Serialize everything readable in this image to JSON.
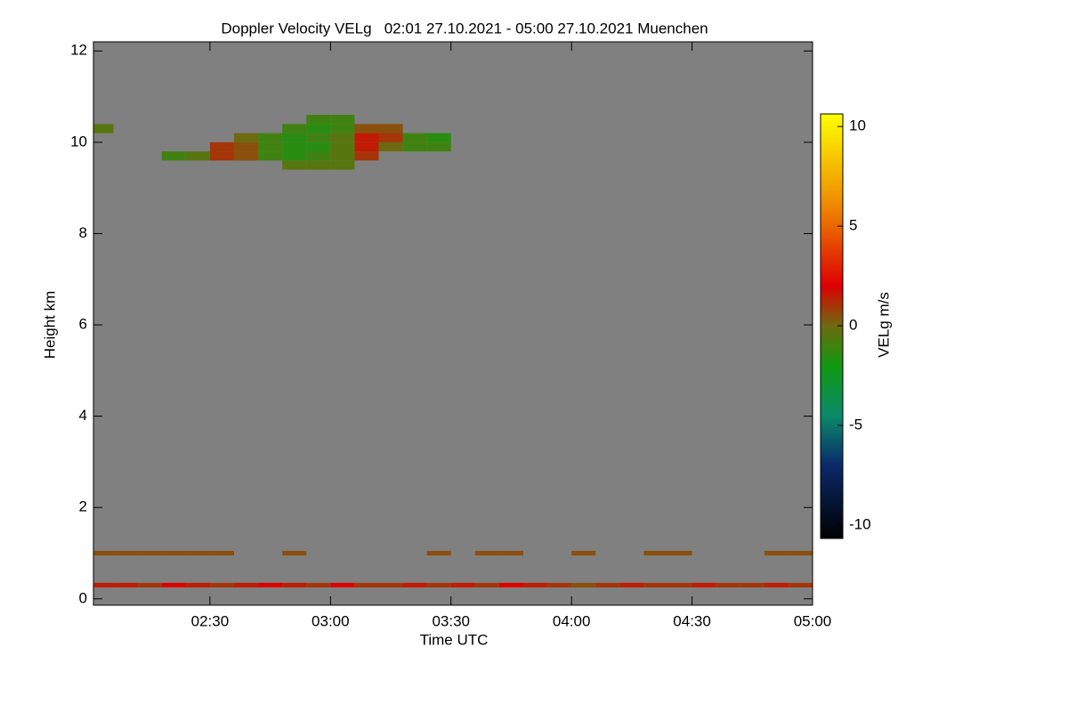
{
  "chart_data": {
    "type": "heatmap",
    "title": "Doppler Velocity VELg   02:01 27.10.2021 - 05:00 27.10.2021 Muenchen",
    "x_label": "Time UTC",
    "y_label": "Height km",
    "colorbar_label": "VELg m/s",
    "background_color": "#808080",
    "xlim": [
      "02:01",
      "05:00"
    ],
    "xticks": [
      "02:30",
      "03:00",
      "03:30",
      "04:00",
      "04:30",
      "05:00"
    ],
    "ylim": [
      -0.14,
      12.2
    ],
    "yticks": [
      0,
      2,
      4,
      6,
      8,
      10,
      12
    ],
    "clim": [
      -10.67,
      10.63
    ],
    "cticks": [
      -10,
      -5,
      0,
      5,
      10
    ],
    "colorscale": [
      [
        -10.67,
        "#000000"
      ],
      [
        -7,
        "#0a2a6a"
      ],
      [
        -4.5,
        "#0a8a6a"
      ],
      [
        -2,
        "#119911"
      ],
      [
        0,
        "#6e6a10"
      ],
      [
        2,
        "#dd0000"
      ],
      [
        6,
        "#ee8800"
      ],
      [
        10.63,
        "#ffff00"
      ]
    ],
    "x_bins": [
      "02:00",
      "02:06",
      "02:12",
      "02:18",
      "02:24",
      "02:30",
      "02:36",
      "02:42",
      "02:48",
      "02:54",
      "03:00",
      "03:06",
      "03:12",
      "03:18",
      "03:24",
      "03:30",
      "03:36",
      "03:42",
      "03:48",
      "03:54",
      "04:00",
      "04:06",
      "04:12",
      "04:18",
      "04:24",
      "04:30",
      "04:36",
      "04:42",
      "04:48",
      "04:54",
      "05:00"
    ],
    "y_rows": [
      [
        0.25,
        0.35
      ],
      [
        0.95,
        1.05
      ],
      [
        9.4,
        9.6
      ],
      [
        9.6,
        9.8
      ],
      [
        9.8,
        10.0
      ],
      [
        10.0,
        10.2
      ],
      [
        10.2,
        10.4
      ],
      [
        10.4,
        10.6
      ]
    ],
    "values": [
      [
        1.5,
        1.5,
        1,
        2,
        1.5,
        1,
        1.5,
        2,
        1.5,
        1,
        2,
        1,
        1,
        1.5,
        1,
        1.5,
        1,
        2,
        1.5,
        1,
        0.5,
        1,
        1.5,
        1,
        1,
        1.5,
        1,
        1,
        1.5,
        1
      ],
      [
        0.5,
        0.5,
        0.5,
        0.5,
        0.5,
        0.5,
        null,
        null,
        0.5,
        null,
        null,
        null,
        null,
        null,
        0.5,
        null,
        0.5,
        0.5,
        null,
        null,
        0.5,
        null,
        null,
        0.5,
        0.5,
        null,
        null,
        null,
        0.5,
        0.5
      ],
      [
        null,
        null,
        null,
        null,
        null,
        null,
        null,
        null,
        -0.5,
        -0.5,
        -0.5,
        null,
        null,
        null,
        null,
        null,
        null,
        null,
        null,
        null,
        null,
        null,
        null,
        null,
        null,
        null,
        null,
        null,
        null,
        null
      ],
      [
        null,
        null,
        null,
        -1,
        -0.5,
        1,
        0.5,
        -1,
        -1.5,
        -1,
        -0.5,
        1,
        null,
        null,
        null,
        null,
        null,
        null,
        null,
        null,
        null,
        null,
        null,
        null,
        null,
        null,
        null,
        null,
        null,
        null
      ],
      [
        null,
        null,
        null,
        null,
        null,
        1,
        0.5,
        -1,
        -1.5,
        -1.5,
        -0.5,
        1.5,
        0,
        -1,
        -1,
        null,
        null,
        null,
        null,
        null,
        null,
        null,
        null,
        null,
        null,
        null,
        null,
        null,
        null,
        null
      ],
      [
        null,
        null,
        null,
        null,
        null,
        null,
        0,
        -1,
        -1.5,
        -1,
        -0.5,
        1.5,
        1,
        -1,
        -1.5,
        null,
        null,
        null,
        null,
        null,
        null,
        null,
        null,
        null,
        null,
        null,
        null,
        null,
        null,
        null
      ],
      [
        -0.5,
        null,
        null,
        null,
        null,
        null,
        null,
        null,
        -1,
        -1.5,
        -1,
        0.5,
        0.5,
        null,
        null,
        null,
        null,
        null,
        null,
        null,
        null,
        null,
        null,
        null,
        null,
        null,
        null,
        null,
        null,
        null
      ],
      [
        null,
        null,
        null,
        null,
        null,
        null,
        null,
        null,
        null,
        -1,
        -1,
        null,
        null,
        null,
        null,
        null,
        null,
        null,
        null,
        null,
        null,
        null,
        null,
        null,
        null,
        null,
        null,
        null,
        null,
        null
      ]
    ]
  }
}
